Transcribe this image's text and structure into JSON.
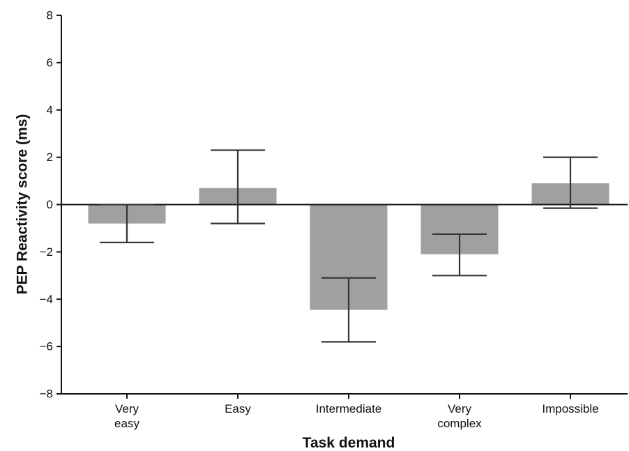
{
  "chart_data": {
    "type": "bar",
    "xlabel": "Task demand",
    "ylabel": "PEP Reactivity score (ms)",
    "ylim": [
      -8,
      8
    ],
    "yticks": [
      -8,
      -6,
      -4,
      -2,
      0,
      2,
      4,
      6,
      8
    ],
    "ytick_labels": [
      "−8",
      "−6",
      "−4",
      "−2",
      "0",
      "2",
      "4",
      "6",
      "8"
    ],
    "grid": false,
    "categories": [
      [
        "Very",
        "easy"
      ],
      [
        "Easy"
      ],
      [
        "Intermediate"
      ],
      [
        "Very",
        "complex"
      ],
      [
        "Impossible"
      ]
    ],
    "values": [
      -0.8,
      0.7,
      -4.45,
      -2.1,
      0.9
    ],
    "error_low": [
      -1.6,
      -0.8,
      -5.8,
      -3.0,
      -0.15
    ],
    "error_high": [
      0.0,
      2.3,
      -3.1,
      -1.25,
      2.0
    ],
    "colors": {
      "bar": "#a0a0a0",
      "axis": "#111111",
      "error": "#333333"
    }
  }
}
